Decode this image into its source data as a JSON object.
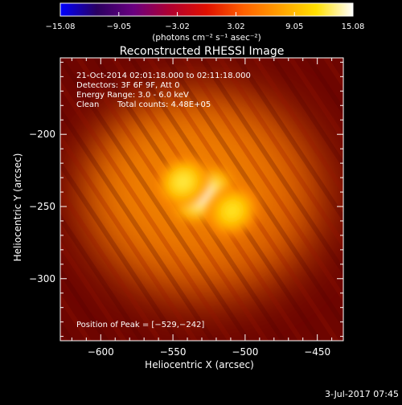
{
  "chart_data": {
    "type": "heatmap",
    "title": "Reconstructed RHESSI Image",
    "xlabel": "Heliocentric X (arcsec)",
    "ylabel": "Heliocentric Y (arcsec)",
    "xlim": [
      -628,
      -432
    ],
    "ylim": [
      -343,
      -147
    ],
    "x_ticks": [
      -600,
      -550,
      -500,
      -450
    ],
    "y_ticks": [
      -200,
      -250,
      -300
    ],
    "x_tick_labels": [
      "−600",
      "−550",
      "−500",
      "−450"
    ],
    "y_tick_labels": [
      "−200",
      "−250",
      "−300"
    ],
    "colorbar": {
      "min": -15.08,
      "max": 15.08,
      "tick_values": [
        -15.08,
        -9.05,
        -3.02,
        3.02,
        9.05,
        15.08
      ],
      "tick_labels": [
        "−15.08",
        "−9.05",
        "−3.02",
        "3.02",
        "9.05",
        "15.08"
      ],
      "unit_label": "(photons cm⁻² s⁻¹ asec⁻²)",
      "colors": [
        "#0000ff",
        "#2a0060",
        "#6a0080",
        "#b00030",
        "#e01000",
        "#ff6000",
        "#ffa000",
        "#ffe000",
        "#ffffff"
      ]
    },
    "sources": [
      {
        "name": "peak",
        "x": -529,
        "y": -242,
        "sigma_x": 10,
        "sigma_y": 7,
        "rotation": -35,
        "amplitude": 15.08
      },
      {
        "name": "upper-left-lobe",
        "x": -543,
        "y": -233,
        "sigma_x": 8,
        "sigma_y": 7,
        "rotation": -35,
        "amplitude": 12.5
      },
      {
        "name": "lower-right-lobe",
        "x": -509,
        "y": -253,
        "sigma_x": 8,
        "sigma_y": 7,
        "rotation": -35,
        "amplitude": 12.0
      }
    ],
    "background_level": 3.5,
    "annotations": {
      "time_range": "21-Oct-2014 02:01:18.000 to 02:11:18.000",
      "detectors": "Detectors: 3F 6F 9F, Att 0",
      "energy_range": "Energy Range: 3.0 - 6.0 keV",
      "method": "Clean",
      "total_counts": "Total counts: 4.48E+05",
      "peak_position": "Position of Peak = [−529,−242]"
    }
  },
  "footer": {
    "timestamp": "3-Jul-2017 07:45"
  }
}
